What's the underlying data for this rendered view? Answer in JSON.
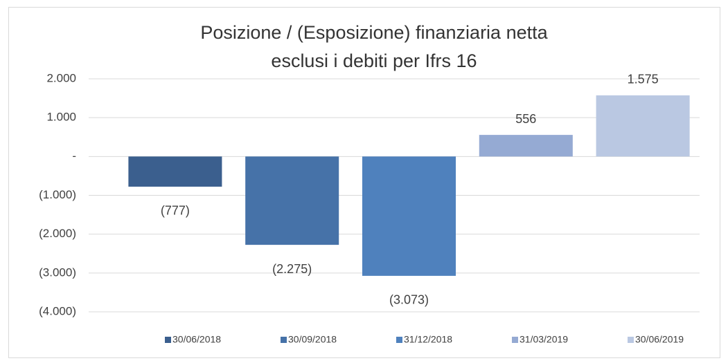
{
  "chart_data": {
    "type": "bar",
    "title": [
      "Posizione / (Esposizione) finanziaria netta",
      "esclusi i debiti per Ifrs 16"
    ],
    "series": [
      {
        "name": "30/06/2018",
        "color": "#3b5f8e",
        "values": [
          -777
        ],
        "value_labels": [
          "(777)"
        ]
      },
      {
        "name": "30/09/2018",
        "color": "#4672a8",
        "values": [
          -2275
        ],
        "value_labels": [
          "(2.275)"
        ]
      },
      {
        "name": "31/12/2018",
        "color": "#4f81bd",
        "values": [
          -3073
        ],
        "value_labels": [
          "(3.073)"
        ]
      },
      {
        "name": "31/03/2019",
        "color": "#95aad3",
        "values": [
          556
        ],
        "value_labels": [
          "556"
        ]
      },
      {
        "name": "30/06/2019",
        "color": "#bac8e2",
        "values": [
          1575
        ],
        "value_labels": [
          "1.575"
        ]
      }
    ],
    "ylim": [
      -4000,
      2000
    ],
    "yticks": [
      {
        "value": 2000,
        "label": "2.000"
      },
      {
        "value": 1000,
        "label": "1.000"
      },
      {
        "value": 0,
        "label": "-"
      },
      {
        "value": -1000,
        "label": "(1.000)"
      },
      {
        "value": -2000,
        "label": "(2.000)"
      },
      {
        "value": -3000,
        "label": "(3.000)"
      },
      {
        "value": -4000,
        "label": "(4.000)"
      }
    ],
    "grid": true,
    "legend": "bottom"
  }
}
